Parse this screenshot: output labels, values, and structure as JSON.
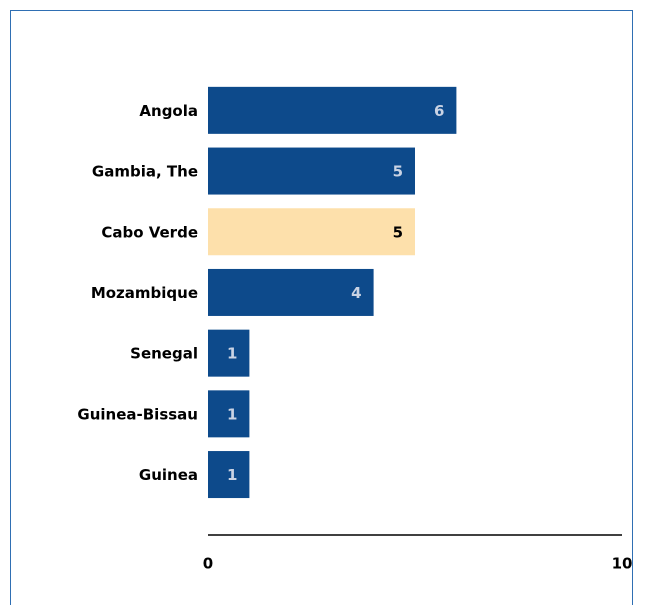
{
  "chart_data": {
    "type": "barh",
    "categories": [
      "Angola",
      "Gambia, The",
      "Cabo Verde",
      "Mozambique",
      "Senegal",
      "Guinea-Bissau",
      "Guinea"
    ],
    "values": [
      6,
      5,
      5,
      4,
      1,
      1,
      1
    ],
    "colors": [
      "#0d4a8b",
      "#0d4a8b",
      "#fde0ab",
      "#0d4a8b",
      "#0d4a8b",
      "#0d4a8b",
      "#0d4a8b"
    ],
    "xlim": [
      0,
      10
    ],
    "xticks": [
      0,
      10
    ],
    "grid": false
  }
}
